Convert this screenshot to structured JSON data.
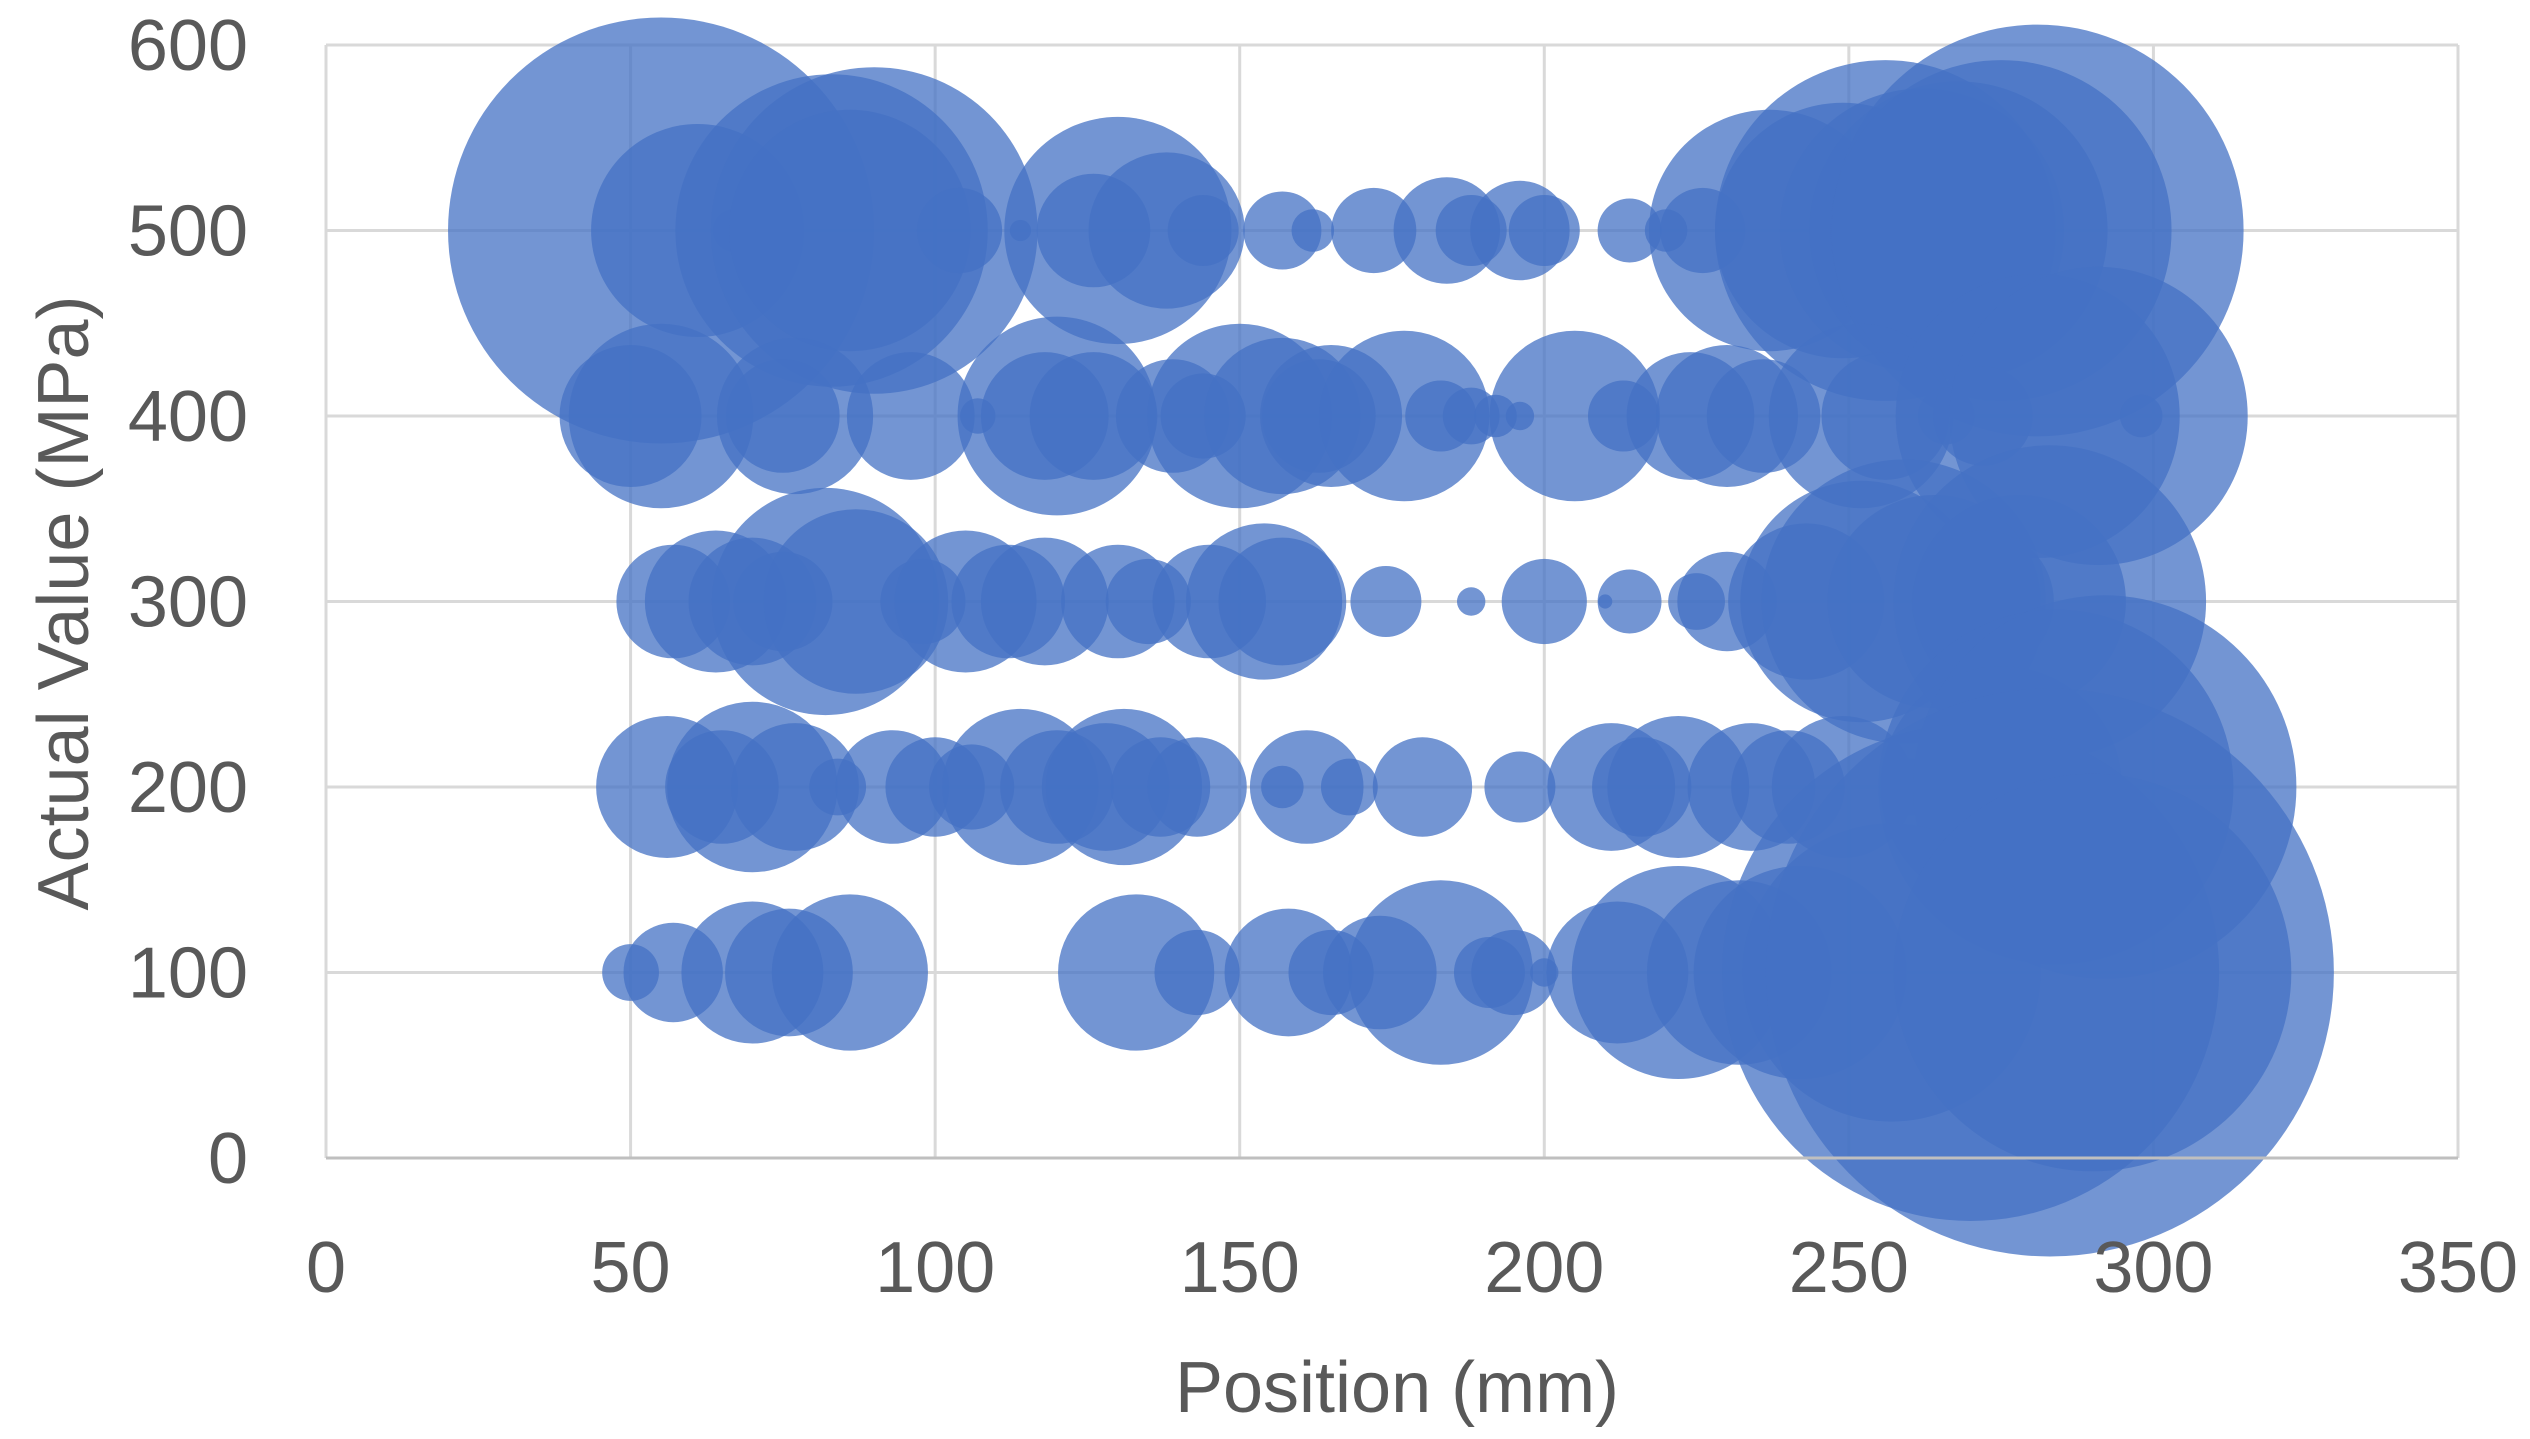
{
  "chart_data": {
    "type": "scatter",
    "subtype": "bubble",
    "title": "",
    "xlabel": "Position (mm)",
    "ylabel": "Actual Value (MPa)",
    "xlim": [
      0,
      350
    ],
    "ylim": [
      0,
      600
    ],
    "x_ticks": [
      0,
      50,
      100,
      150,
      200,
      250,
      300,
      350
    ],
    "y_ticks": [
      0,
      100,
      200,
      300,
      400,
      500,
      600
    ],
    "x_tick_labels": [
      "0",
      "50",
      "100",
      "150",
      "200",
      "250",
      "300",
      "350"
    ],
    "y_tick_labels": [
      "0",
      "100",
      "200",
      "300",
      "400",
      "500",
      "600"
    ],
    "grid": true,
    "legend": "none",
    "color": "#4472c4",
    "size_unit": "relative",
    "series": [
      {
        "points": [
          {
            "x": 55,
            "y": 500,
            "size": 60
          },
          {
            "x": 61,
            "y": 500,
            "size": 30
          },
          {
            "x": 67,
            "y": 500,
            "size": 6
          },
          {
            "x": 83,
            "y": 500,
            "size": 44
          },
          {
            "x": 90,
            "y": 500,
            "size": 46
          },
          {
            "x": 86,
            "y": 500,
            "size": 34
          },
          {
            "x": 104,
            "y": 500,
            "size": 12
          },
          {
            "x": 114,
            "y": 500,
            "size": 3
          },
          {
            "x": 126,
            "y": 500,
            "size": 16
          },
          {
            "x": 130,
            "y": 500,
            "size": 32
          },
          {
            "x": 138,
            "y": 500,
            "size": 22
          },
          {
            "x": 144,
            "y": 500,
            "size": 10
          },
          {
            "x": 157,
            "y": 500,
            "size": 11
          },
          {
            "x": 162,
            "y": 500,
            "size": 6
          },
          {
            "x": 172,
            "y": 500,
            "size": 12
          },
          {
            "x": 184,
            "y": 500,
            "size": 15
          },
          {
            "x": 188,
            "y": 500,
            "size": 10
          },
          {
            "x": 196,
            "y": 500,
            "size": 14
          },
          {
            "x": 200,
            "y": 500,
            "size": 10
          },
          {
            "x": 214,
            "y": 500,
            "size": 9
          },
          {
            "x": 220,
            "y": 500,
            "size": 6
          },
          {
            "x": 226,
            "y": 500,
            "size": 12
          },
          {
            "x": 237,
            "y": 500,
            "size": 34
          },
          {
            "x": 249,
            "y": 500,
            "size": 36
          },
          {
            "x": 256,
            "y": 500,
            "size": 48
          },
          {
            "x": 262,
            "y": 500,
            "size": 40
          },
          {
            "x": 268,
            "y": 500,
            "size": 42
          },
          {
            "x": 275,
            "y": 500,
            "size": 48
          },
          {
            "x": 281,
            "y": 500,
            "size": 58
          }
        ]
      },
      {
        "points": [
          {
            "x": 50,
            "y": 400,
            "size": 20
          },
          {
            "x": 55,
            "y": 400,
            "size": 26
          },
          {
            "x": 75,
            "y": 400,
            "size": 16
          },
          {
            "x": 77,
            "y": 400,
            "size": 22
          },
          {
            "x": 96,
            "y": 400,
            "size": 18
          },
          {
            "x": 107,
            "y": 400,
            "size": 5
          },
          {
            "x": 118,
            "y": 400,
            "size": 18
          },
          {
            "x": 120,
            "y": 400,
            "size": 28
          },
          {
            "x": 126,
            "y": 400,
            "size": 18
          },
          {
            "x": 139,
            "y": 400,
            "size": 16
          },
          {
            "x": 144,
            "y": 400,
            "size": 12
          },
          {
            "x": 150,
            "y": 400,
            "size": 26
          },
          {
            "x": 157,
            "y": 400,
            "size": 22
          },
          {
            "x": 163,
            "y": 400,
            "size": 16
          },
          {
            "x": 165,
            "y": 400,
            "size": 20
          },
          {
            "x": 177,
            "y": 400,
            "size": 24
          },
          {
            "x": 183,
            "y": 400,
            "size": 10
          },
          {
            "x": 188,
            "y": 400,
            "size": 8
          },
          {
            "x": 192,
            "y": 400,
            "size": 6
          },
          {
            "x": 196,
            "y": 400,
            "size": 4
          },
          {
            "x": 205,
            "y": 400,
            "size": 24
          },
          {
            "x": 213,
            "y": 400,
            "size": 10
          },
          {
            "x": 224,
            "y": 400,
            "size": 18
          },
          {
            "x": 230,
            "y": 400,
            "size": 20
          },
          {
            "x": 236,
            "y": 400,
            "size": 16
          },
          {
            "x": 252,
            "y": 400,
            "size": 26
          },
          {
            "x": 256,
            "y": 400,
            "size": 18
          },
          {
            "x": 266,
            "y": 400,
            "size": 8
          },
          {
            "x": 272,
            "y": 400,
            "size": 14
          },
          {
            "x": 281,
            "y": 400,
            "size": 40
          },
          {
            "x": 291,
            "y": 400,
            "size": 42
          },
          {
            "x": 298,
            "y": 400,
            "size": 6
          }
        ]
      },
      {
        "points": [
          {
            "x": 57,
            "y": 300,
            "size": 16
          },
          {
            "x": 64,
            "y": 300,
            "size": 20
          },
          {
            "x": 70,
            "y": 300,
            "size": 18
          },
          {
            "x": 75,
            "y": 300,
            "size": 14
          },
          {
            "x": 82,
            "y": 300,
            "size": 32
          },
          {
            "x": 87,
            "y": 300,
            "size": 26
          },
          {
            "x": 98,
            "y": 300,
            "size": 12
          },
          {
            "x": 105,
            "y": 300,
            "size": 20
          },
          {
            "x": 112,
            "y": 300,
            "size": 16
          },
          {
            "x": 118,
            "y": 300,
            "size": 18
          },
          {
            "x": 130,
            "y": 300,
            "size": 16
          },
          {
            "x": 135,
            "y": 300,
            "size": 12
          },
          {
            "x": 145,
            "y": 300,
            "size": 16
          },
          {
            "x": 154,
            "y": 300,
            "size": 22
          },
          {
            "x": 157,
            "y": 300,
            "size": 18
          },
          {
            "x": 174,
            "y": 300,
            "size": 10
          },
          {
            "x": 188,
            "y": 300,
            "size": 4
          },
          {
            "x": 200,
            "y": 300,
            "size": 12
          },
          {
            "x": 210,
            "y": 300,
            "size": 2
          },
          {
            "x": 214,
            "y": 300,
            "size": 9
          },
          {
            "x": 225,
            "y": 300,
            "size": 8
          },
          {
            "x": 230,
            "y": 300,
            "size": 14
          },
          {
            "x": 243,
            "y": 300,
            "size": 22
          },
          {
            "x": 252,
            "y": 300,
            "size": 34
          },
          {
            "x": 259,
            "y": 300,
            "size": 40
          },
          {
            "x": 264,
            "y": 300,
            "size": 30
          },
          {
            "x": 272,
            "y": 300,
            "size": 20
          },
          {
            "x": 278,
            "y": 300,
            "size": 30
          },
          {
            "x": 283,
            "y": 300,
            "size": 44
          }
        ]
      },
      {
        "points": [
          {
            "x": 56,
            "y": 200,
            "size": 20
          },
          {
            "x": 65,
            "y": 200,
            "size": 16
          },
          {
            "x": 70,
            "y": 200,
            "size": 24
          },
          {
            "x": 77,
            "y": 200,
            "size": 18
          },
          {
            "x": 84,
            "y": 200,
            "size": 8
          },
          {
            "x": 93,
            "y": 200,
            "size": 16
          },
          {
            "x": 100,
            "y": 200,
            "size": 14
          },
          {
            "x": 106,
            "y": 200,
            "size": 12
          },
          {
            "x": 114,
            "y": 200,
            "size": 22
          },
          {
            "x": 120,
            "y": 200,
            "size": 16
          },
          {
            "x": 128,
            "y": 200,
            "size": 18
          },
          {
            "x": 131,
            "y": 200,
            "size": 22
          },
          {
            "x": 137,
            "y": 200,
            "size": 14
          },
          {
            "x": 143,
            "y": 200,
            "size": 14
          },
          {
            "x": 157,
            "y": 200,
            "size": 6
          },
          {
            "x": 161,
            "y": 200,
            "size": 16
          },
          {
            "x": 168,
            "y": 200,
            "size": 8
          },
          {
            "x": 180,
            "y": 200,
            "size": 14
          },
          {
            "x": 196,
            "y": 200,
            "size": 10
          },
          {
            "x": 211,
            "y": 200,
            "size": 18
          },
          {
            "x": 216,
            "y": 200,
            "size": 14
          },
          {
            "x": 222,
            "y": 200,
            "size": 20
          },
          {
            "x": 234,
            "y": 200,
            "size": 18
          },
          {
            "x": 240,
            "y": 200,
            "size": 16
          },
          {
            "x": 249,
            "y": 200,
            "size": 20
          },
          {
            "x": 260,
            "y": 200,
            "size": 8
          },
          {
            "x": 267,
            "y": 200,
            "size": 10
          },
          {
            "x": 275,
            "y": 200,
            "size": 34
          },
          {
            "x": 284,
            "y": 200,
            "size": 50
          },
          {
            "x": 292,
            "y": 200,
            "size": 54
          }
        ]
      },
      {
        "points": [
          {
            "x": 50,
            "y": 100,
            "size": 8
          },
          {
            "x": 57,
            "y": 100,
            "size": 14
          },
          {
            "x": 70,
            "y": 100,
            "size": 20
          },
          {
            "x": 76,
            "y": 100,
            "size": 18
          },
          {
            "x": 86,
            "y": 100,
            "size": 22
          },
          {
            "x": 133,
            "y": 100,
            "size": 22
          },
          {
            "x": 143,
            "y": 100,
            "size": 12
          },
          {
            "x": 158,
            "y": 100,
            "size": 18
          },
          {
            "x": 165,
            "y": 100,
            "size": 12
          },
          {
            "x": 173,
            "y": 100,
            "size": 16
          },
          {
            "x": 183,
            "y": 100,
            "size": 26
          },
          {
            "x": 191,
            "y": 100,
            "size": 10
          },
          {
            "x": 195,
            "y": 100,
            "size": 12
          },
          {
            "x": 200,
            "y": 100,
            "size": 4
          },
          {
            "x": 212,
            "y": 100,
            "size": 20
          },
          {
            "x": 222,
            "y": 100,
            "size": 30
          },
          {
            "x": 232,
            "y": 100,
            "size": 26
          },
          {
            "x": 242,
            "y": 100,
            "size": 30
          },
          {
            "x": 257,
            "y": 100,
            "size": 42
          },
          {
            "x": 270,
            "y": 100,
            "size": 70
          },
          {
            "x": 283,
            "y": 100,
            "size": 80
          },
          {
            "x": 290,
            "y": 100,
            "size": 56
          }
        ]
      }
    ]
  }
}
